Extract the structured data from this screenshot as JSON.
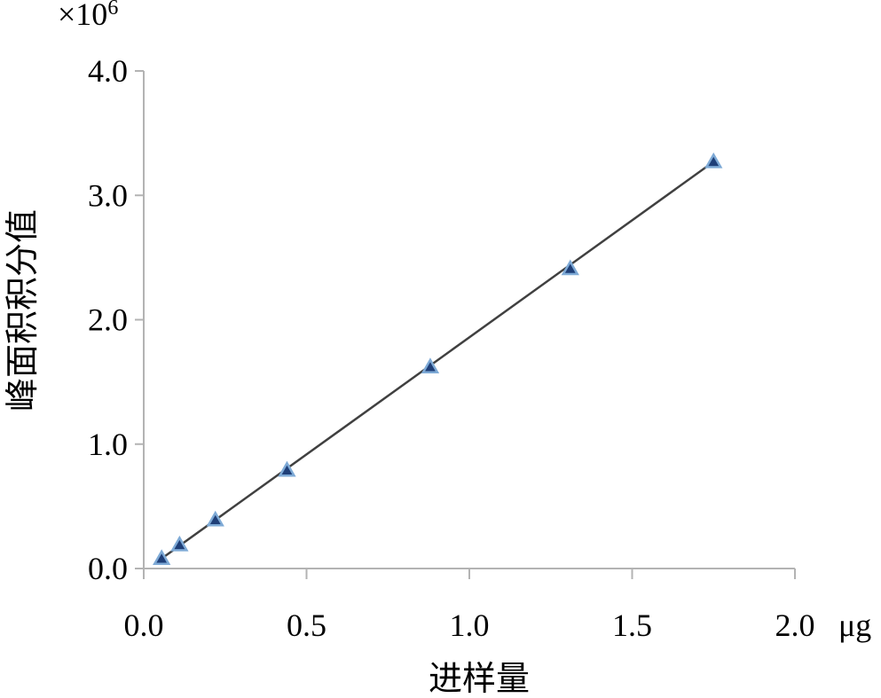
{
  "chart_data": {
    "type": "scatter",
    "y_multiplier": "×10",
    "y_multiplier_exponent": "6",
    "xlabel": "进样量",
    "x_unit": "μg",
    "ylabel": "峰面积积分值",
    "xlim": [
      0,
      2
    ],
    "ylim": [
      0,
      4
    ],
    "x_ticks": [
      0,
      0.5,
      1.0,
      1.5,
      2.0
    ],
    "x_tick_labels": [
      "0.0",
      "0.5",
      "1.0",
      "1.5",
      "2.0"
    ],
    "y_ticks": [
      0,
      1,
      2,
      3,
      4
    ],
    "y_tick_labels": [
      "0.0",
      "1.0",
      "2.0",
      "3.0",
      "4.0"
    ],
    "series": [
      {
        "marker": "triangle",
        "points": [
          {
            "x": 0.055,
            "y": 0.08
          },
          {
            "x": 0.11,
            "y": 0.19
          },
          {
            "x": 0.22,
            "y": 0.39
          },
          {
            "x": 0.44,
            "y": 0.79
          },
          {
            "x": 0.88,
            "y": 1.62
          },
          {
            "x": 1.31,
            "y": 2.41
          },
          {
            "x": 1.75,
            "y": 3.27
          }
        ]
      }
    ],
    "trendline": {
      "x": [
        0.055,
        1.75
      ],
      "y": [
        0.08,
        3.27
      ]
    },
    "grid": false,
    "colors": {
      "axis": "#b3b3b3",
      "line": "#404040",
      "marker_fill": "#1f3f78",
      "marker_edge": "#7eaad6"
    }
  }
}
